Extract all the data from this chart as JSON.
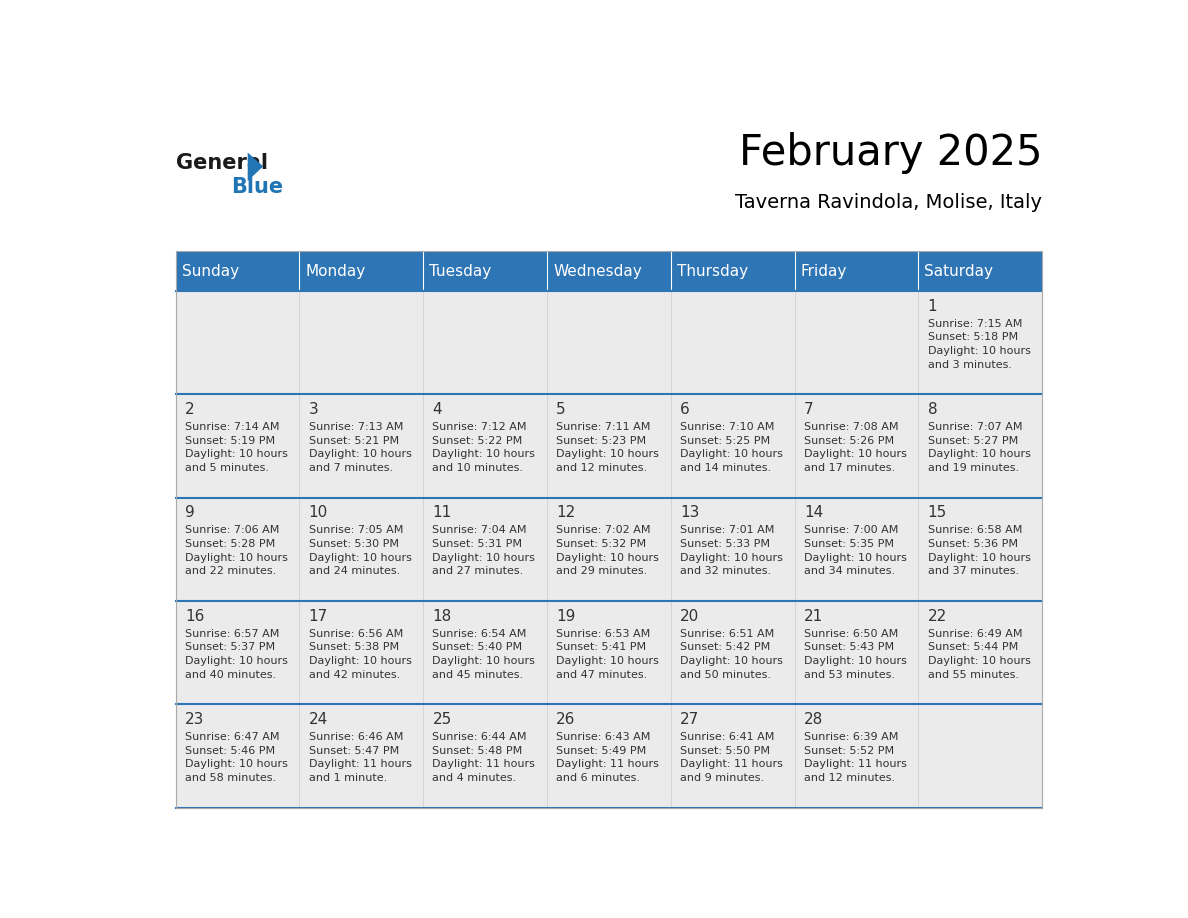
{
  "title": "February 2025",
  "subtitle": "Taverna Ravindola, Molise, Italy",
  "days_of_week": [
    "Sunday",
    "Monday",
    "Tuesday",
    "Wednesday",
    "Thursday",
    "Friday",
    "Saturday"
  ],
  "header_bg": "#2E75B6",
  "header_text": "#FFFFFF",
  "cell_bg": "#EBEBEB",
  "separator_color": "#2E75B6",
  "text_color": "#333333",
  "day_num_color": "#333333",
  "logo_general_color": "#1a1a1a",
  "logo_blue_color": "#2175B5",
  "calendar_data": [
    [
      {
        "day": null,
        "info": ""
      },
      {
        "day": null,
        "info": ""
      },
      {
        "day": null,
        "info": ""
      },
      {
        "day": null,
        "info": ""
      },
      {
        "day": null,
        "info": ""
      },
      {
        "day": null,
        "info": ""
      },
      {
        "day": 1,
        "info": "Sunrise: 7:15 AM\nSunset: 5:18 PM\nDaylight: 10 hours\nand 3 minutes."
      }
    ],
    [
      {
        "day": 2,
        "info": "Sunrise: 7:14 AM\nSunset: 5:19 PM\nDaylight: 10 hours\nand 5 minutes."
      },
      {
        "day": 3,
        "info": "Sunrise: 7:13 AM\nSunset: 5:21 PM\nDaylight: 10 hours\nand 7 minutes."
      },
      {
        "day": 4,
        "info": "Sunrise: 7:12 AM\nSunset: 5:22 PM\nDaylight: 10 hours\nand 10 minutes."
      },
      {
        "day": 5,
        "info": "Sunrise: 7:11 AM\nSunset: 5:23 PM\nDaylight: 10 hours\nand 12 minutes."
      },
      {
        "day": 6,
        "info": "Sunrise: 7:10 AM\nSunset: 5:25 PM\nDaylight: 10 hours\nand 14 minutes."
      },
      {
        "day": 7,
        "info": "Sunrise: 7:08 AM\nSunset: 5:26 PM\nDaylight: 10 hours\nand 17 minutes."
      },
      {
        "day": 8,
        "info": "Sunrise: 7:07 AM\nSunset: 5:27 PM\nDaylight: 10 hours\nand 19 minutes."
      }
    ],
    [
      {
        "day": 9,
        "info": "Sunrise: 7:06 AM\nSunset: 5:28 PM\nDaylight: 10 hours\nand 22 minutes."
      },
      {
        "day": 10,
        "info": "Sunrise: 7:05 AM\nSunset: 5:30 PM\nDaylight: 10 hours\nand 24 minutes."
      },
      {
        "day": 11,
        "info": "Sunrise: 7:04 AM\nSunset: 5:31 PM\nDaylight: 10 hours\nand 27 minutes."
      },
      {
        "day": 12,
        "info": "Sunrise: 7:02 AM\nSunset: 5:32 PM\nDaylight: 10 hours\nand 29 minutes."
      },
      {
        "day": 13,
        "info": "Sunrise: 7:01 AM\nSunset: 5:33 PM\nDaylight: 10 hours\nand 32 minutes."
      },
      {
        "day": 14,
        "info": "Sunrise: 7:00 AM\nSunset: 5:35 PM\nDaylight: 10 hours\nand 34 minutes."
      },
      {
        "day": 15,
        "info": "Sunrise: 6:58 AM\nSunset: 5:36 PM\nDaylight: 10 hours\nand 37 minutes."
      }
    ],
    [
      {
        "day": 16,
        "info": "Sunrise: 6:57 AM\nSunset: 5:37 PM\nDaylight: 10 hours\nand 40 minutes."
      },
      {
        "day": 17,
        "info": "Sunrise: 6:56 AM\nSunset: 5:38 PM\nDaylight: 10 hours\nand 42 minutes."
      },
      {
        "day": 18,
        "info": "Sunrise: 6:54 AM\nSunset: 5:40 PM\nDaylight: 10 hours\nand 45 minutes."
      },
      {
        "day": 19,
        "info": "Sunrise: 6:53 AM\nSunset: 5:41 PM\nDaylight: 10 hours\nand 47 minutes."
      },
      {
        "day": 20,
        "info": "Sunrise: 6:51 AM\nSunset: 5:42 PM\nDaylight: 10 hours\nand 50 minutes."
      },
      {
        "day": 21,
        "info": "Sunrise: 6:50 AM\nSunset: 5:43 PM\nDaylight: 10 hours\nand 53 minutes."
      },
      {
        "day": 22,
        "info": "Sunrise: 6:49 AM\nSunset: 5:44 PM\nDaylight: 10 hours\nand 55 minutes."
      }
    ],
    [
      {
        "day": 23,
        "info": "Sunrise: 6:47 AM\nSunset: 5:46 PM\nDaylight: 10 hours\nand 58 minutes."
      },
      {
        "day": 24,
        "info": "Sunrise: 6:46 AM\nSunset: 5:47 PM\nDaylight: 11 hours\nand 1 minute."
      },
      {
        "day": 25,
        "info": "Sunrise: 6:44 AM\nSunset: 5:48 PM\nDaylight: 11 hours\nand 4 minutes."
      },
      {
        "day": 26,
        "info": "Sunrise: 6:43 AM\nSunset: 5:49 PM\nDaylight: 11 hours\nand 6 minutes."
      },
      {
        "day": 27,
        "info": "Sunrise: 6:41 AM\nSunset: 5:50 PM\nDaylight: 11 hours\nand 9 minutes."
      },
      {
        "day": 28,
        "info": "Sunrise: 6:39 AM\nSunset: 5:52 PM\nDaylight: 11 hours\nand 12 minutes."
      },
      {
        "day": null,
        "info": ""
      }
    ]
  ]
}
